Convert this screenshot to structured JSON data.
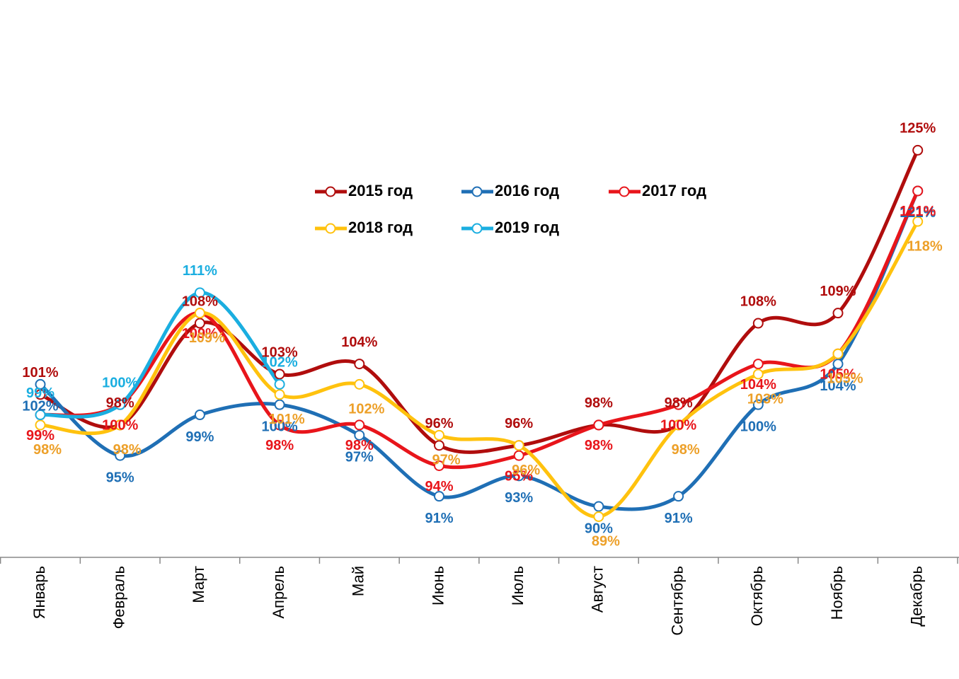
{
  "chart_data": {
    "type": "line",
    "categories": [
      "Январь",
      "Февраль",
      "Март",
      "Апрель",
      "Май",
      "Июнь",
      "Июль",
      "Август",
      "Сентябрь",
      "Октябрь",
      "Ноябрь",
      "Декабрь"
    ],
    "ylim": [
      85,
      135
    ],
    "series": [
      {
        "name": "2015 год",
        "color": "#b00d0d",
        "label_color": "#b00d0d",
        "values": [
          101,
          98,
          108,
          103,
          104,
          96,
          96,
          98,
          98,
          108,
          109,
          125
        ],
        "value_labels": [
          "101%",
          "98%",
          "108%",
          "103%",
          "104%",
          "96%",
          "96%",
          "98%",
          "98%",
          "108%",
          "109%",
          "125%"
        ]
      },
      {
        "name": "2016 год",
        "color": "#1f6fb5",
        "label_color": "#1f6fb5",
        "values": [
          102,
          95,
          99,
          100,
          97,
          91,
          93,
          90,
          91,
          100,
          104,
          121
        ],
        "value_labels": [
          "102%",
          "95%",
          "99%",
          "100%",
          "97%",
          "91%",
          "93%",
          "90%",
          "91%",
          "100%",
          "104%",
          "121%"
        ]
      },
      {
        "name": "2017 год",
        "color": "#e8151b",
        "label_color": "#e8151b",
        "values": [
          99,
          100,
          109,
          98,
          98,
          94,
          95,
          98,
          100,
          104,
          105,
          121
        ],
        "value_labels": [
          "99%",
          "100%",
          "109%",
          "98%",
          "98%",
          "94%",
          "95%",
          "98%",
          "100%",
          "104%",
          "105%",
          "121%"
        ]
      },
      {
        "name": "2018 год",
        "color": "#ffc20e",
        "label_color": "#eda029",
        "values": [
          98,
          98,
          109,
          101,
          102,
          97,
          96,
          89,
          98,
          103,
          105,
          118
        ],
        "value_labels": [
          "98%",
          "98%",
          "109%",
          "101%",
          "102%",
          "97%",
          "96%",
          "89%",
          "98%",
          "103%",
          "105%",
          "118%"
        ]
      },
      {
        "name": "2019 год",
        "color": "#1aaee0",
        "label_color": "#1aaee0",
        "values": [
          99,
          100,
          111,
          102,
          null,
          null,
          null,
          null,
          null,
          null,
          null,
          null
        ],
        "value_labels": [
          "99%",
          "100%",
          "111%",
          "102%",
          null,
          null,
          null,
          null,
          null,
          null,
          null,
          null
        ]
      }
    ]
  }
}
